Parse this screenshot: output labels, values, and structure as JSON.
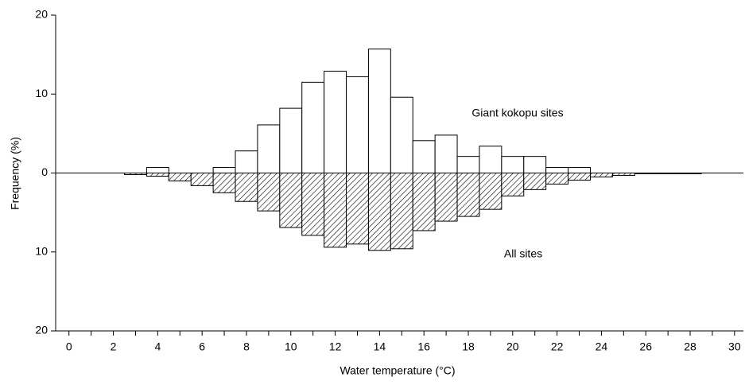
{
  "chart_data": {
    "type": "histogram",
    "xlabel": "Water temperature (°C)",
    "ylabel": "Frequency (%)",
    "bins": [
      2.5,
      3.5,
      4.5,
      5.5,
      6.5,
      7.5,
      8.5,
      9.5,
      10.5,
      11.5,
      12.5,
      13.5,
      14.5,
      15.5,
      16.5,
      17.5,
      18.5,
      19.5,
      20.5,
      21.5,
      22.5,
      23.5,
      24.5,
      25.5,
      26.5,
      27.5,
      28.5
    ],
    "series": [
      {
        "name": "Giant kokopu sites",
        "color": "#ffffff",
        "values": [
          0,
          0.7,
          0,
          0,
          0.7,
          2.8,
          6.1,
          8.2,
          11.5,
          12.9,
          12.2,
          15.7,
          9.6,
          4.1,
          4.8,
          2.1,
          3.4,
          2.1,
          2.1,
          0.7,
          0.7,
          0,
          0,
          0,
          0,
          0
        ]
      },
      {
        "name": "All sites",
        "color": "#000000",
        "pattern": "hatch",
        "values": [
          -0.2,
          -0.4,
          -1.0,
          -1.6,
          -2.5,
          -3.6,
          -4.8,
          -6.9,
          -7.9,
          -9.4,
          -9.0,
          -9.8,
          -9.6,
          -7.3,
          -6.1,
          -5.5,
          -4.6,
          -2.9,
          -2.1,
          -1.4,
          -0.9,
          -0.5,
          -0.3,
          -0.1,
          -0.1,
          -0.1
        ]
      }
    ],
    "xlim": [
      -0.6,
      30.4
    ],
    "xticks": [
      0,
      2,
      4,
      6,
      8,
      10,
      12,
      14,
      16,
      18,
      20,
      22,
      24,
      26,
      28,
      30
    ],
    "xminorticks": [
      1,
      3,
      5,
      7,
      9,
      11,
      13,
      15,
      17,
      19,
      21,
      23,
      25,
      27,
      29
    ],
    "ylim": [
      -20,
      20
    ],
    "yticks": [
      {
        "value": -20,
        "label": "20"
      },
      {
        "value": -10,
        "label": "10"
      },
      0,
      10,
      20
    ]
  }
}
